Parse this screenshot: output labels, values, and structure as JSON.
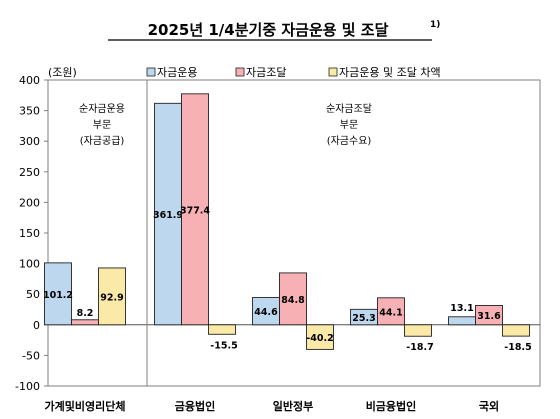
{
  "chart_data": {
    "type": "bar",
    "title": "2025년 1/4분기중 자금운용 및 조달",
    "title_superscript": "1)",
    "ylabel": "(조원)",
    "ylim": [
      -100,
      400
    ],
    "yticks": [
      -100,
      -50,
      0,
      50,
      100,
      150,
      200,
      250,
      300,
      350,
      400
    ],
    "grid": false,
    "legend_position": "top",
    "categories": [
      "가계및비영리단체",
      "금융법인",
      "일반정부",
      "비금융법인",
      "국외"
    ],
    "series": [
      {
        "name": "자금운용",
        "color": "#bcd7ee",
        "values": [
          101.2,
          361.9,
          44.6,
          25.3,
          13.1
        ],
        "labels": [
          "101.2",
          "361.9",
          "44.6",
          "25.3",
          "13.1"
        ]
      },
      {
        "name": "자금조달",
        "color": "#f7b1b4",
        "values": [
          8.2,
          377.4,
          84.8,
          44.1,
          31.6
        ],
        "labels": [
          "8.2",
          "377.4",
          "84.8",
          "44.1",
          "31.6"
        ]
      },
      {
        "name": "자금운용 및 조달 차액",
        "color": "#fbe9a7",
        "values": [
          92.9,
          -15.5,
          -40.2,
          -18.7,
          -18.5
        ],
        "labels": [
          "92.9",
          "-15.5",
          "-40.2",
          "-18.7",
          "-18.5"
        ]
      }
    ],
    "annotations": [
      {
        "lines": [
          "순자금운용",
          "부문",
          "(자금공급)"
        ]
      },
      {
        "lines": [
          "순자금조달",
          "부문",
          "(자금수요)"
        ]
      }
    ]
  }
}
